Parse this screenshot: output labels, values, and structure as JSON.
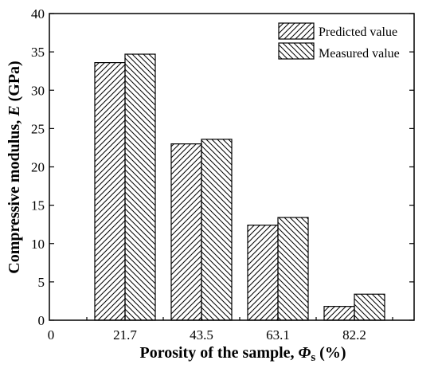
{
  "chart_data": {
    "type": "bar",
    "categories": [
      "21.7",
      "43.5",
      "63.1",
      "82.2"
    ],
    "series": [
      {
        "name": "Predicted value",
        "values": [
          33.6,
          23.0,
          12.4,
          1.8
        ],
        "hatch": "forward-diagonal"
      },
      {
        "name": "Measured value",
        "values": [
          34.7,
          23.6,
          13.4,
          3.4
        ],
        "hatch": "backward-diagonal"
      }
    ],
    "xlabel": {
      "prefix": "Porosity of the sample, ",
      "symbol": "Φ",
      "subscript": "s",
      "suffix": " (%)"
    },
    "ylabel": {
      "prefix": "Compressive modulus, ",
      "symbol": "E",
      "suffix": " (GPa)"
    },
    "x_origin_label": "0",
    "ylim": [
      0,
      40
    ],
    "yticks": [
      "0",
      "5",
      "10",
      "15",
      "20",
      "25",
      "30",
      "35",
      "40"
    ],
    "legend_position": "top-right",
    "grid": false,
    "colors": {
      "bar_fill": "#ffffff",
      "stroke": "#000000"
    }
  }
}
